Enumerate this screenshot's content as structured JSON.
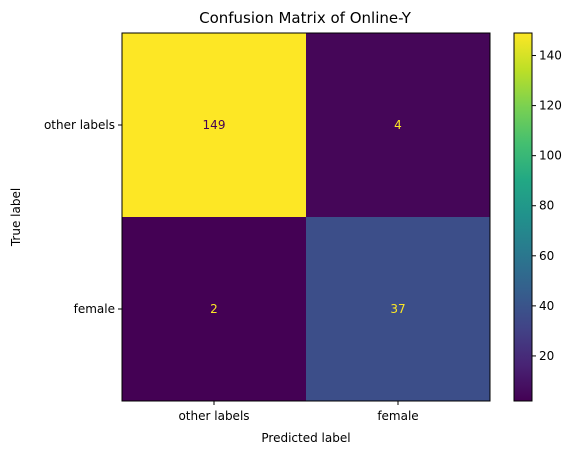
{
  "chart_data": {
    "type": "heatmap",
    "title": "Confusion Matrix of Online-Y",
    "xlabel": "Predicted label",
    "ylabel": "True label",
    "x_categories": [
      "other labels",
      "female"
    ],
    "y_categories": [
      "other labels",
      "female"
    ],
    "matrix": [
      [
        149,
        4
      ],
      [
        2,
        37
      ]
    ],
    "colormap": "viridis",
    "colorbar": {
      "min": 2,
      "max": 149,
      "ticks": [
        20,
        40,
        60,
        80,
        100,
        120,
        140
      ]
    },
    "cell_text_colors": {
      "on_dark": "#fde725",
      "on_light": "#440154"
    }
  }
}
